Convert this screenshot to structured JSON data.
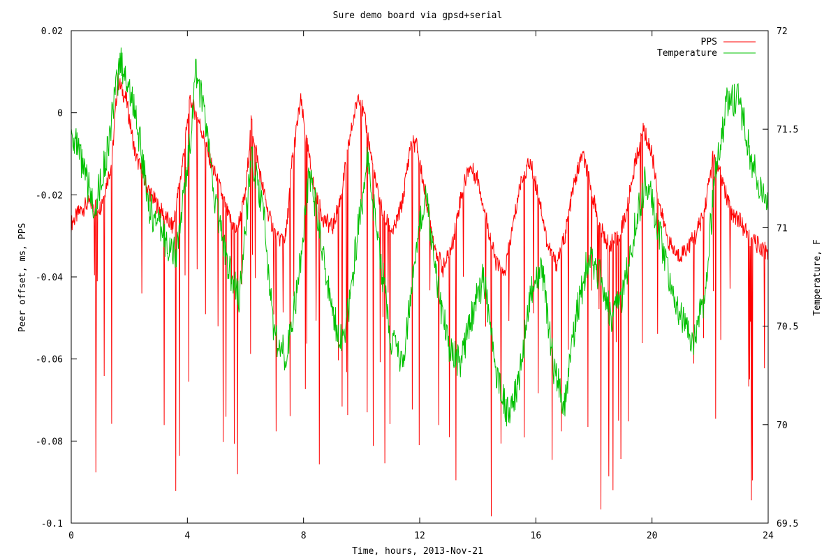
{
  "chart_data": {
    "type": "line",
    "title": "Sure demo board via gpsd+serial",
    "xlabel": "Time, hours, 2013-Nov-21",
    "ylabel": "Peer offset, ms, PPS",
    "y2label": "Temperature, F",
    "xlim": [
      0,
      24
    ],
    "ylim": [
      -0.1,
      0.02
    ],
    "y2lim": [
      69.5,
      72
    ],
    "xticks": [
      0,
      4,
      8,
      12,
      16,
      20,
      24
    ],
    "yticks": [
      -0.1,
      -0.08,
      -0.06,
      -0.04,
      -0.02,
      0,
      0.02
    ],
    "ytick_labels": [
      "-0.1",
      "-0.08",
      "-0.06",
      "-0.04",
      "-0.02",
      "0",
      "0.02"
    ],
    "y2ticks": [
      69.5,
      70,
      70.5,
      71,
      71.5,
      72
    ],
    "y2tick_labels": [
      "69.5",
      "70",
      "70.5",
      "71",
      "71.5",
      "72"
    ],
    "legend_position": "top-right",
    "series": [
      {
        "name": "PPS",
        "axis": "left",
        "color": "#ff0000",
        "x": [
          0,
          0.3,
          0.6,
          1.0,
          1.4,
          1.6,
          1.9,
          2.2,
          2.6,
          3.0,
          3.5,
          3.8,
          4.1,
          4.4,
          4.8,
          5.1,
          5.4,
          5.7,
          6.0,
          6.2,
          6.5,
          6.8,
          7.1,
          7.4,
          7.6,
          7.9,
          8.1,
          8.4,
          8.7,
          9.0,
          9.3,
          9.6,
          9.9,
          10.2,
          10.5,
          10.8,
          11.1,
          11.4,
          11.7,
          11.9,
          12.2,
          12.5,
          12.8,
          13.1,
          13.4,
          13.7,
          14.0,
          14.3,
          14.6,
          14.9,
          15.2,
          15.5,
          15.8,
          16.1,
          16.4,
          16.7,
          17.0,
          17.3,
          17.6,
          17.9,
          18.2,
          18.5,
          18.8,
          19.1,
          19.4,
          19.7,
          20.0,
          20.3,
          20.6,
          20.9,
          21.2,
          21.5,
          21.8,
          22.1,
          22.4,
          22.7,
          23.0,
          23.3,
          23.6,
          24.0
        ],
        "y": [
          -0.027,
          -0.024,
          -0.022,
          -0.023,
          -0.012,
          0.008,
          0.003,
          -0.01,
          -0.018,
          -0.023,
          -0.028,
          -0.014,
          0.003,
          -0.002,
          -0.012,
          -0.018,
          -0.025,
          -0.029,
          -0.02,
          -0.002,
          -0.015,
          -0.025,
          -0.031,
          -0.03,
          -0.012,
          0.003,
          -0.007,
          -0.02,
          -0.026,
          -0.028,
          -0.02,
          -0.006,
          0.005,
          -0.005,
          -0.018,
          -0.026,
          -0.029,
          -0.022,
          -0.007,
          -0.008,
          -0.02,
          -0.032,
          -0.038,
          -0.033,
          -0.021,
          -0.013,
          -0.016,
          -0.026,
          -0.036,
          -0.04,
          -0.028,
          -0.016,
          -0.012,
          -0.02,
          -0.032,
          -0.037,
          -0.03,
          -0.018,
          -0.01,
          -0.018,
          -0.028,
          -0.032,
          -0.031,
          -0.025,
          -0.013,
          -0.004,
          -0.01,
          -0.024,
          -0.032,
          -0.035,
          -0.033,
          -0.03,
          -0.024,
          -0.011,
          -0.016,
          -0.024,
          -0.026,
          -0.03,
          -0.032,
          -0.034
        ]
      },
      {
        "name": "Temperature",
        "axis": "right",
        "color": "#00c000",
        "x": [
          0,
          0.4,
          0.8,
          1.2,
          1.7,
          2.2,
          2.7,
          3.2,
          3.6,
          4.0,
          4.3,
          4.6,
          5.0,
          5.4,
          5.8,
          6.2,
          6.6,
          7.0,
          7.4,
          7.8,
          8.2,
          8.6,
          9.0,
          9.4,
          9.8,
          10.2,
          10.6,
          11.0,
          11.4,
          11.8,
          12.2,
          12.6,
          13.0,
          13.4,
          13.8,
          14.2,
          14.6,
          15.0,
          15.4,
          15.8,
          16.2,
          16.6,
          17.0,
          17.4,
          17.8,
          18.2,
          18.6,
          19.0,
          19.4,
          19.8,
          20.2,
          20.6,
          21.0,
          21.4,
          21.8,
          22.2,
          22.6,
          23.0,
          23.4,
          24.0
        ],
        "y": [
          71.5,
          71.3,
          71.1,
          71.35,
          71.85,
          71.6,
          71.1,
          70.95,
          70.85,
          71.3,
          71.8,
          71.55,
          71.1,
          70.8,
          70.65,
          71.35,
          71.1,
          70.45,
          70.35,
          70.7,
          71.3,
          70.95,
          70.55,
          70.4,
          70.9,
          71.35,
          70.9,
          70.45,
          70.3,
          70.8,
          71.2,
          70.7,
          70.4,
          70.3,
          70.55,
          70.75,
          70.3,
          70.05,
          70.2,
          70.65,
          70.8,
          70.3,
          70.1,
          70.55,
          70.85,
          70.75,
          70.55,
          70.65,
          71.0,
          71.25,
          71.0,
          70.75,
          70.55,
          70.4,
          70.65,
          71.3,
          71.65,
          71.65,
          71.35,
          71.1
        ]
      }
    ]
  }
}
